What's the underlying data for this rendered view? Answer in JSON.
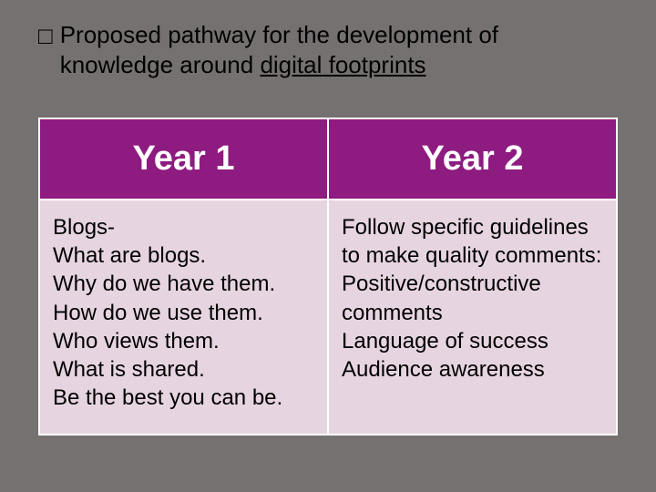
{
  "background_color": "#767171",
  "slide": {
    "bullet_glyph": "□",
    "title_pre": "Proposed pathway for the development of knowledge around ",
    "title_underlined": "digital footprints",
    "title_fontsize": 26,
    "title_color": "#000000"
  },
  "table": {
    "type": "table",
    "header_bg": "#8e1b80",
    "header_color": "#ffffff",
    "header_fontsize": 38,
    "body_bg": "#e6d5e0",
    "body_color": "#000000",
    "body_fontsize": 24,
    "border_color": "#ffffff",
    "columns": [
      "Year 1",
      "Year 2"
    ],
    "rows": [
      [
        "Blogs-\nWhat are blogs.\nWhy do we have them.\nHow do we use them.\nWho views them.\nWhat is shared.\nBe the best you can be.",
        "Follow specific guidelines\nto make quality comments:\nPositive/constructive comments\nLanguage of success\nAudience awareness"
      ]
    ]
  }
}
